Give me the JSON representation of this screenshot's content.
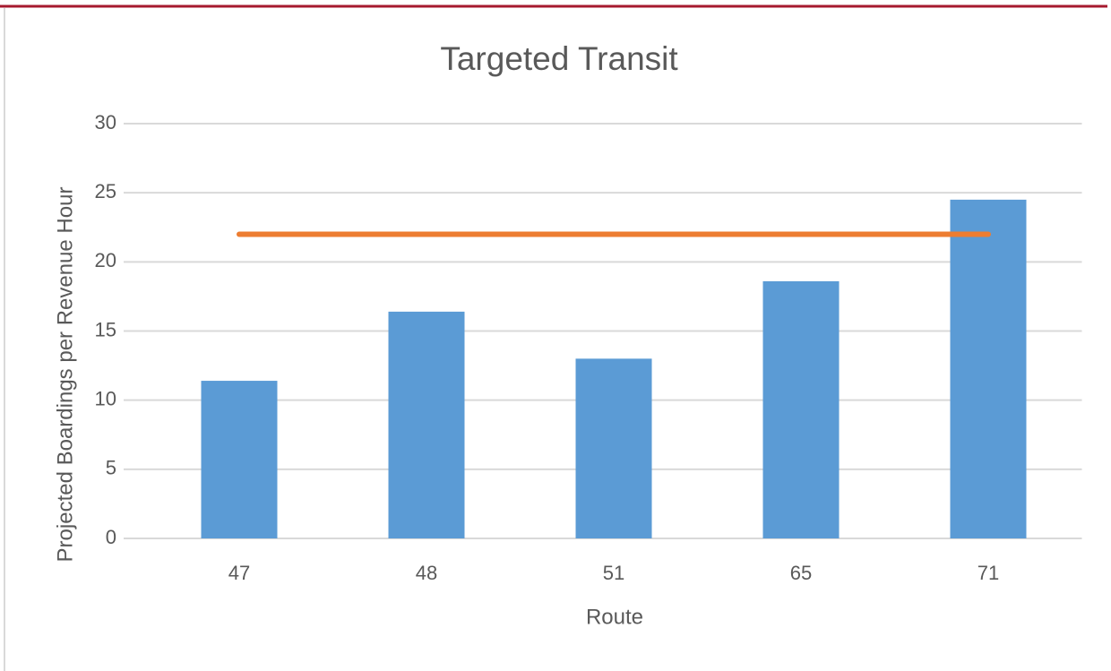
{
  "chart_data": {
    "type": "bar",
    "title": "Targeted Transit",
    "x_label": "Route",
    "y_label": "Projected Boardings per Revenue Hour",
    "categories": [
      "47",
      "48",
      "51",
      "65",
      "71"
    ],
    "series": [
      {
        "type": "bar",
        "color": "#5b9bd5",
        "values": [
          11.4,
          16.4,
          13.0,
          18.6,
          24.5
        ]
      },
      {
        "type": "line",
        "color": "#ed7d31",
        "values": [
          22,
          22,
          22,
          22,
          22
        ]
      }
    ],
    "ylim": [
      0,
      30
    ],
    "yticks": [
      0,
      5,
      10,
      15,
      20,
      25,
      30
    ],
    "grid": true
  }
}
